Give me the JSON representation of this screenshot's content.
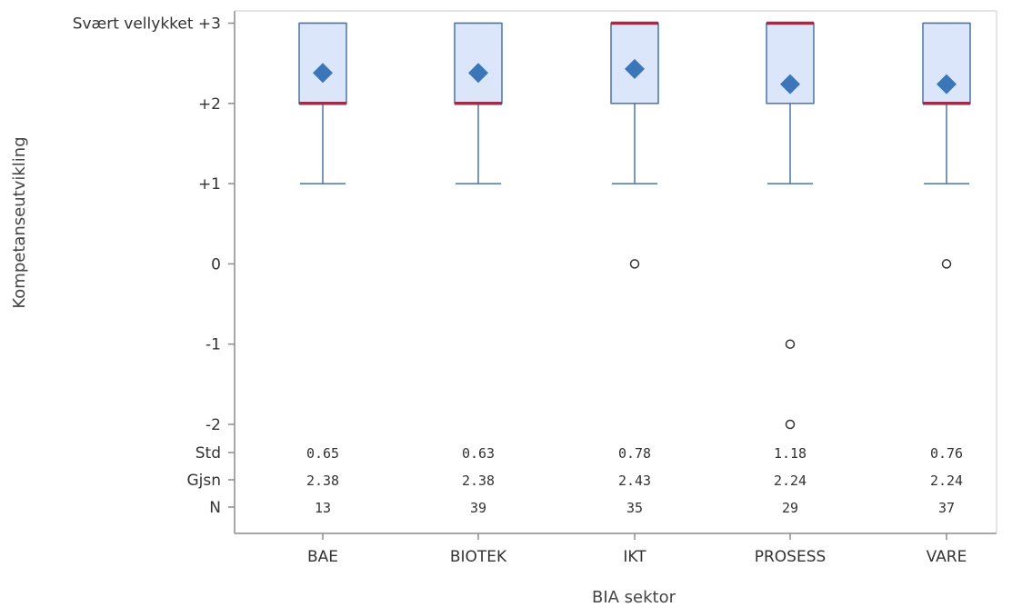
{
  "chart_data": {
    "type": "box",
    "xlabel": "BIA sektor",
    "ylabel": "Kompetanseutvikling",
    "ylim": [
      -2,
      3
    ],
    "yticks": [
      {
        "value": 3,
        "label": "Svært vellykket +3"
      },
      {
        "value": 2,
        "label": "+2"
      },
      {
        "value": 1,
        "label": "+1"
      },
      {
        "value": 0,
        "label": "0"
      },
      {
        "value": -1,
        "label": "-1"
      },
      {
        "value": -2,
        "label": "-2"
      }
    ],
    "categories": [
      "BAE",
      "BIOTEK",
      "IKT",
      "PROSESS",
      "VARE"
    ],
    "boxes": [
      {
        "category": "BAE",
        "min": 1,
        "q1": 2,
        "median": 2,
        "q3": 3,
        "max": 3,
        "mean": 2.38,
        "outliers": []
      },
      {
        "category": "BIOTEK",
        "min": 1,
        "q1": 2,
        "median": 2,
        "q3": 3,
        "max": 3,
        "mean": 2.38,
        "outliers": []
      },
      {
        "category": "IKT",
        "min": 1,
        "q1": 2,
        "median": 3,
        "q3": 3,
        "max": 3,
        "mean": 2.43,
        "outliers": [
          0
        ]
      },
      {
        "category": "PROSESS",
        "min": 1,
        "q1": 2,
        "median": 3,
        "q3": 3,
        "max": 3,
        "mean": 2.24,
        "outliers": [
          -1,
          -2
        ]
      },
      {
        "category": "VARE",
        "min": 1,
        "q1": 2,
        "median": 2,
        "q3": 3,
        "max": 3,
        "mean": 2.24,
        "outliers": [
          0
        ]
      }
    ],
    "stats_table": {
      "row_labels": [
        "Std",
        "Gjsn",
        "N"
      ],
      "rows": [
        [
          "0.65",
          "0.63",
          "0.78",
          "1.18",
          "0.76"
        ],
        [
          "2.38",
          "2.38",
          "2.43",
          "2.24",
          "2.24"
        ],
        [
          "13",
          "39",
          "35",
          "29",
          "37"
        ]
      ]
    },
    "colors": {
      "box_fill": "#dbe6fb",
      "box_stroke": "#4a74a8",
      "median": "#9b2f4a",
      "mean_marker": "#3a76b8",
      "outlier": "#333333",
      "axis": "#8c8c8c"
    }
  }
}
